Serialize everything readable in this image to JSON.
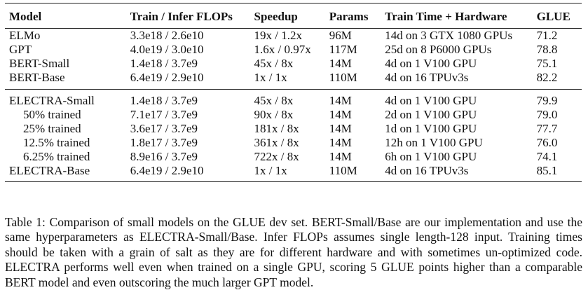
{
  "table": {
    "headers": [
      "Model",
      "Train / Infer FLOPs",
      "Speedup",
      "Params",
      "Train Time + Hardware",
      "GLUE"
    ],
    "group1": [
      {
        "model": "ELMo",
        "flops": "3.3e18 / 2.6e10",
        "speedup": "19x / 1.2x",
        "params": "96M",
        "time": "14d on 3 GTX 1080 GPUs",
        "glue": "71.2"
      },
      {
        "model": "GPT",
        "flops": "4.0e19 / 3.0e10",
        "speedup": "1.6x / 0.97x",
        "params": "117M",
        "time": "25d on 8 P6000 GPUs",
        "glue": "78.8"
      },
      {
        "model": "BERT-Small",
        "flops": "1.4e18 / 3.7e9",
        "speedup": "45x / 8x",
        "params": "14M",
        "time": "4d on 1 V100 GPU",
        "glue": "75.1"
      },
      {
        "model": "BERT-Base",
        "flops": "6.4e19 / 2.9e10",
        "speedup": "1x / 1x",
        "params": "110M",
        "time": "4d on 16 TPUv3s",
        "glue": "82.2"
      }
    ],
    "group2": [
      {
        "model": "ELECTRA-Small",
        "flops": "1.4e18 / 3.7e9",
        "speedup": "45x / 8x",
        "params": "14M",
        "time": "4d on 1 V100 GPU",
        "glue": "79.9"
      },
      {
        "model": "50% trained",
        "flops": "7.1e17 / 3.7e9",
        "speedup": "90x / 8x",
        "params": "14M",
        "time": "2d on 1 V100 GPU",
        "glue": "79.0"
      },
      {
        "model": "25% trained",
        "flops": "3.6e17 / 3.7e9",
        "speedup": "181x / 8x",
        "params": "14M",
        "time": "1d on 1 V100 GPU",
        "glue": "77.7"
      },
      {
        "model": "12.5% trained",
        "flops": "1.8e17 / 3.7e9",
        "speedup": "361x / 8x",
        "params": "14M",
        "time": "12h on 1 V100 GPU",
        "glue": "76.0"
      },
      {
        "model": "6.25% trained",
        "flops": "8.9e16 / 3.7e9",
        "speedup": "722x / 8x",
        "params": "14M",
        "time": "6h on 1 V100 GPU",
        "glue": "74.1"
      },
      {
        "model": "ELECTRA-Base",
        "flops": "6.4e19 / 2.9e10",
        "speedup": "1x / 1x",
        "params": "110M",
        "time": "4d on 16 TPUv3s",
        "glue": "85.1"
      }
    ]
  },
  "caption": "Table 1: Comparison of small models on the GLUE dev set. BERT-Small/Base are our implementation and use the same hyperparameters as ELECTRA-Small/Base. Infer FLOPs assumes single length-128 input. Training times should be taken with a grain of salt as they are for different hardware and with sometimes un-optimized code. ELECTRA performs well even when trained on a single GPU, scoring 5 GLUE points higher than a comparable BERT model and even outscoring the much larger GPT model."
}
